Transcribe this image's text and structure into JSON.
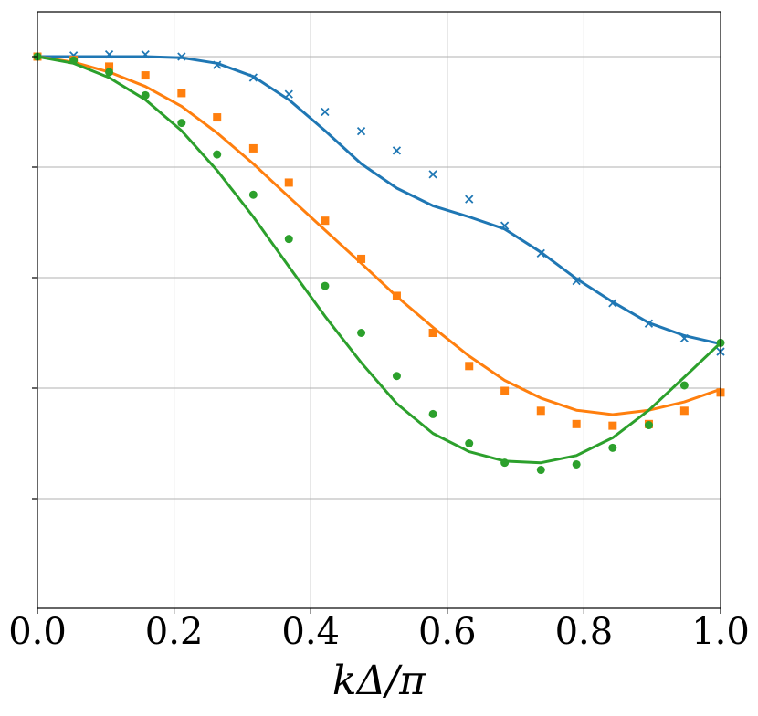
{
  "chart_data": {
    "type": "line",
    "title": "",
    "xlabel": "kΔ/π",
    "ylabel": "",
    "xlim": [
      0.0,
      1.0
    ],
    "ylim": [
      0.0,
      1.0
    ],
    "x_ticks": [
      0.0,
      0.2,
      0.4,
      0.6,
      0.8,
      1.0
    ],
    "x_tick_labels": [
      "0.0",
      "0.2",
      "0.4",
      "0.6",
      "0.8",
      "1.0"
    ],
    "y_ticks": [
      0.2,
      0.4,
      0.6,
      0.8,
      1.0
    ],
    "y_tick_labels": [
      "",
      "",
      "",
      "",
      ""
    ],
    "grid": true,
    "colors": [
      "#1f77b4",
      "#ff7f0e",
      "#2ca02c"
    ],
    "series": [
      {
        "kind": "line",
        "color": "#1f77b4",
        "x": [
          0.0,
          0.053,
          0.105,
          0.158,
          0.211,
          0.263,
          0.316,
          0.368,
          0.421,
          0.474,
          0.526,
          0.579,
          0.632,
          0.684,
          0.737,
          0.789,
          0.842,
          0.895,
          0.947,
          1.0
        ],
        "y": [
          1.0,
          1.0,
          1.0,
          1.0,
          0.998,
          0.988,
          0.964,
          0.922,
          0.866,
          0.806,
          0.762,
          0.73,
          0.71,
          0.688,
          0.646,
          0.598,
          0.556,
          0.518,
          0.495,
          0.48
        ]
      },
      {
        "kind": "markers",
        "marker": "x",
        "color": "#1f77b4",
        "x": [
          0.0,
          0.053,
          0.105,
          0.158,
          0.211,
          0.263,
          0.316,
          0.368,
          0.421,
          0.474,
          0.526,
          0.579,
          0.632,
          0.684,
          0.737,
          0.789,
          0.842,
          0.895,
          0.947,
          1.0
        ],
        "y": [
          1.0,
          1.002,
          1.004,
          1.004,
          1.0,
          0.985,
          0.962,
          0.932,
          0.9,
          0.865,
          0.83,
          0.787,
          0.742,
          0.694,
          0.644,
          0.594,
          0.554,
          0.517,
          0.49,
          0.466
        ]
      },
      {
        "kind": "line",
        "color": "#ff7f0e",
        "x": [
          0.0,
          0.053,
          0.105,
          0.158,
          0.211,
          0.263,
          0.316,
          0.368,
          0.421,
          0.474,
          0.526,
          0.579,
          0.632,
          0.684,
          0.737,
          0.789,
          0.842,
          0.895,
          0.947,
          1.0
        ],
        "y": [
          1.0,
          0.99,
          0.972,
          0.946,
          0.91,
          0.862,
          0.806,
          0.746,
          0.686,
          0.626,
          0.566,
          0.51,
          0.458,
          0.414,
          0.382,
          0.36,
          0.352,
          0.36,
          0.375,
          0.398
        ]
      },
      {
        "kind": "markers",
        "marker": "s",
        "color": "#ff7f0e",
        "x": [
          0.0,
          0.053,
          0.105,
          0.158,
          0.211,
          0.263,
          0.316,
          0.368,
          0.421,
          0.474,
          0.526,
          0.579,
          0.632,
          0.684,
          0.737,
          0.789,
          0.842,
          0.895,
          0.947,
          1.0
        ],
        "y": [
          1.0,
          0.994,
          0.982,
          0.966,
          0.934,
          0.89,
          0.834,
          0.772,
          0.703,
          0.634,
          0.567,
          0.5,
          0.44,
          0.395,
          0.359,
          0.335,
          0.332,
          0.335,
          0.359,
          0.392
        ]
      },
      {
        "kind": "line",
        "color": "#2ca02c",
        "x": [
          0.0,
          0.053,
          0.105,
          0.158,
          0.211,
          0.263,
          0.316,
          0.368,
          0.421,
          0.474,
          0.526,
          0.579,
          0.632,
          0.684,
          0.737,
          0.789,
          0.842,
          0.895,
          0.947,
          1.0
        ],
        "y": [
          1.0,
          0.988,
          0.962,
          0.922,
          0.866,
          0.794,
          0.71,
          0.62,
          0.53,
          0.446,
          0.372,
          0.318,
          0.285,
          0.268,
          0.265,
          0.278,
          0.31,
          0.36,
          0.42,
          0.482
        ]
      },
      {
        "kind": "markers",
        "marker": "o",
        "color": "#2ca02c",
        "x": [
          0.0,
          0.053,
          0.105,
          0.158,
          0.211,
          0.263,
          0.316,
          0.368,
          0.421,
          0.474,
          0.526,
          0.579,
          0.632,
          0.684,
          0.737,
          0.789,
          0.842,
          0.895,
          0.947,
          1.0
        ],
        "y": [
          1.0,
          0.993,
          0.972,
          0.93,
          0.88,
          0.823,
          0.75,
          0.67,
          0.585,
          0.5,
          0.422,
          0.353,
          0.3,
          0.265,
          0.252,
          0.262,
          0.292,
          0.333,
          0.405,
          0.482
        ]
      }
    ]
  }
}
